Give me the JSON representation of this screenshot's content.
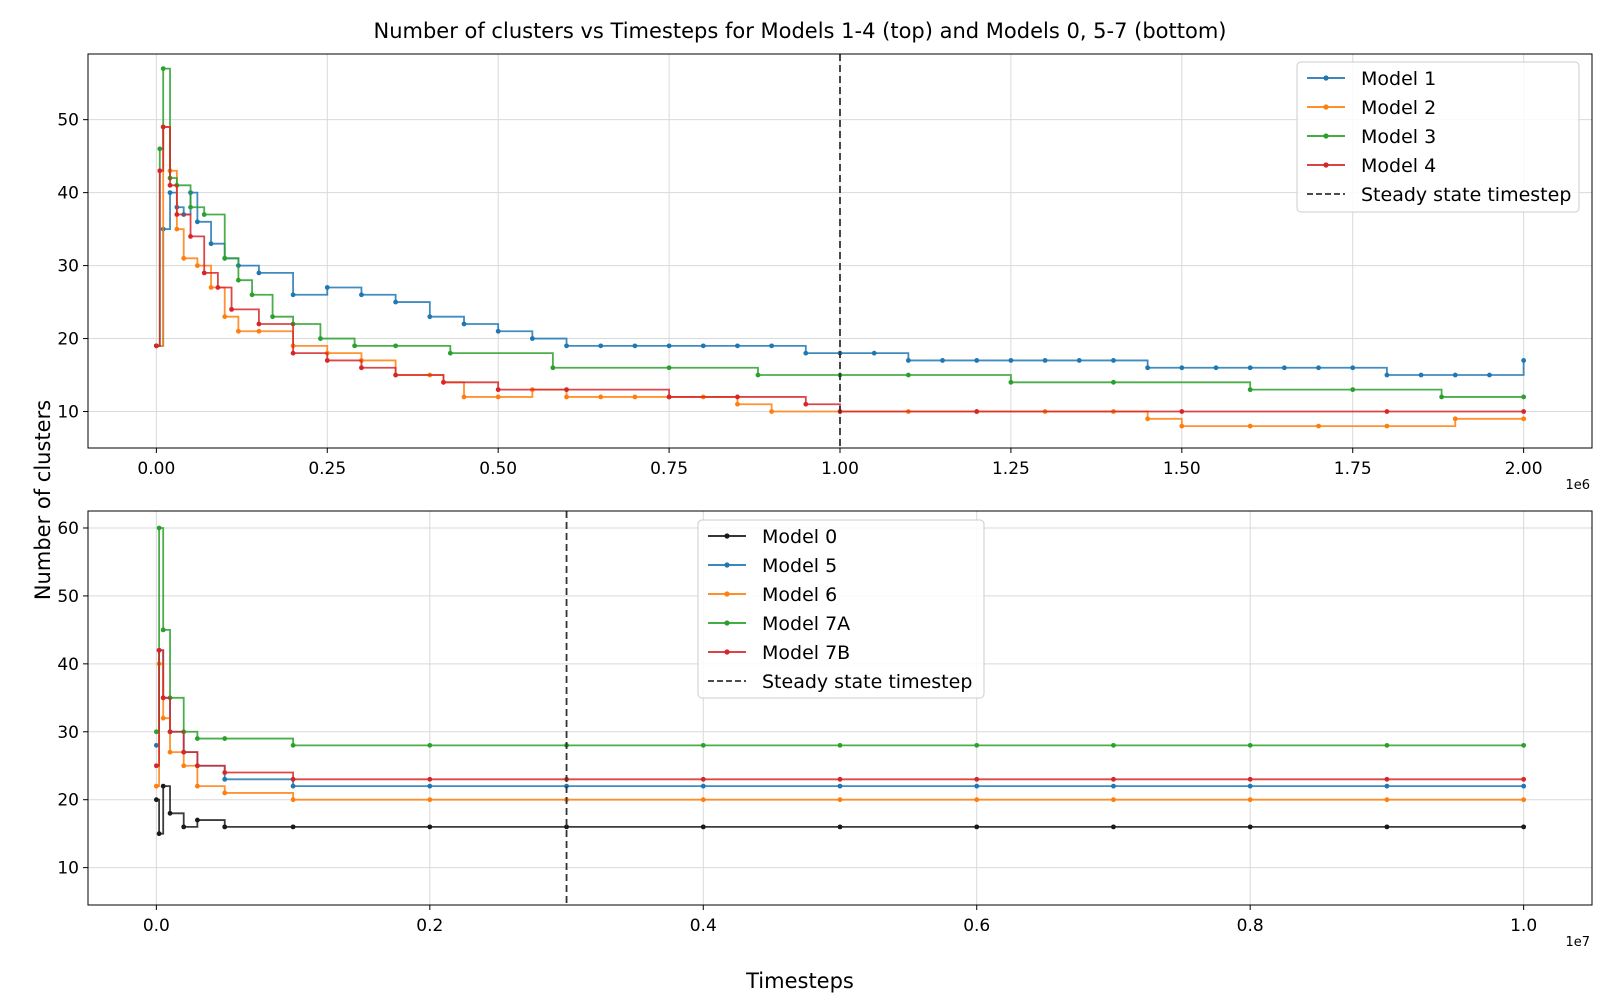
{
  "figure": {
    "title": "Number of clusters vs Timesteps for Models 1-4 (top) and Models 0, 5-7 (bottom)",
    "shared_xlabel": "Timesteps",
    "shared_ylabel": "Number of clusters"
  },
  "chart_data": [
    {
      "type": "line",
      "panel": "top",
      "xlim": [
        -0.1,
        2.1
      ],
      "ylim": [
        5,
        59
      ],
      "x_ticks": [
        0.0,
        0.25,
        0.5,
        0.75,
        1.0,
        1.25,
        1.5,
        1.75,
        2.0
      ],
      "x_tick_labels": [
        "0.00",
        "0.25",
        "0.50",
        "0.75",
        "1.00",
        "1.25",
        "1.50",
        "1.75",
        "2.00"
      ],
      "x_offset_label": "1e6",
      "y_ticks": [
        10,
        20,
        30,
        40,
        50
      ],
      "y_tick_labels": [
        "10",
        "20",
        "30",
        "40",
        "50"
      ],
      "grid": true,
      "legend_position": "top-right",
      "vline": {
        "x": 1.0,
        "label": "Steady state timestep",
        "color": "#333333",
        "style": "dashed"
      },
      "series": [
        {
          "name": "Model 1",
          "color": "#1f77b4",
          "x": [
            0.0,
            0.01,
            0.02,
            0.03,
            0.04,
            0.05,
            0.06,
            0.08,
            0.1,
            0.12,
            0.15,
            0.2,
            0.25,
            0.3,
            0.35,
            0.4,
            0.45,
            0.5,
            0.55,
            0.6,
            0.65,
            0.7,
            0.75,
            0.8,
            0.85,
            0.9,
            0.95,
            1.0,
            1.05,
            1.1,
            1.15,
            1.2,
            1.25,
            1.3,
            1.35,
            1.4,
            1.45,
            1.5,
            1.55,
            1.6,
            1.65,
            1.7,
            1.75,
            1.8,
            1.85,
            1.9,
            1.95,
            2.0
          ],
          "y": [
            19,
            35,
            40,
            38,
            37,
            40,
            36,
            33,
            31,
            30,
            29,
            26,
            27,
            26,
            25,
            23,
            22,
            21,
            20,
            19,
            19,
            19,
            19,
            19,
            19,
            19,
            18,
            18,
            18,
            17,
            17,
            17,
            17,
            17,
            17,
            17,
            16,
            16,
            16,
            16,
            16,
            16,
            16,
            15,
            15,
            15,
            15,
            17
          ]
        },
        {
          "name": "Model 2",
          "color": "#ff7f0e",
          "x": [
            0.0,
            0.01,
            0.02,
            0.03,
            0.04,
            0.06,
            0.08,
            0.1,
            0.12,
            0.15,
            0.2,
            0.25,
            0.3,
            0.35,
            0.4,
            0.42,
            0.45,
            0.5,
            0.55,
            0.6,
            0.65,
            0.7,
            0.75,
            0.8,
            0.85,
            0.9,
            1.0,
            1.1,
            1.2,
            1.3,
            1.4,
            1.45,
            1.5,
            1.6,
            1.7,
            1.8,
            1.9,
            2.0
          ],
          "y": [
            19,
            49,
            43,
            35,
            31,
            30,
            27,
            23,
            21,
            21,
            19,
            18,
            17,
            15,
            15,
            14,
            12,
            12,
            13,
            12,
            12,
            12,
            12,
            12,
            11,
            10,
            10,
            10,
            10,
            10,
            10,
            9,
            8,
            8,
            8,
            8,
            9,
            9
          ]
        },
        {
          "name": "Model 3",
          "color": "#2ca02c",
          "x": [
            0.0,
            0.005,
            0.01,
            0.02,
            0.03,
            0.05,
            0.07,
            0.1,
            0.12,
            0.14,
            0.17,
            0.2,
            0.24,
            0.29,
            0.35,
            0.43,
            0.58,
            0.75,
            0.88,
            1.0,
            1.1,
            1.25,
            1.4,
            1.6,
            1.75,
            1.88,
            2.0
          ],
          "y": [
            19,
            46,
            57,
            42,
            41,
            38,
            37,
            31,
            28,
            26,
            23,
            22,
            20,
            19,
            19,
            18,
            16,
            16,
            15,
            15,
            15,
            14,
            14,
            13,
            13,
            12,
            12
          ]
        },
        {
          "name": "Model 4",
          "color": "#d62728",
          "x": [
            0.0,
            0.005,
            0.01,
            0.02,
            0.03,
            0.05,
            0.07,
            0.09,
            0.11,
            0.15,
            0.2,
            0.25,
            0.3,
            0.35,
            0.42,
            0.5,
            0.6,
            0.75,
            0.85,
            0.95,
            1.0,
            1.2,
            1.5,
            1.8,
            2.0
          ],
          "y": [
            19,
            43,
            49,
            41,
            37,
            34,
            29,
            27,
            24,
            22,
            18,
            17,
            16,
            15,
            14,
            13,
            13,
            12,
            12,
            11,
            10,
            10,
            10,
            10,
            10
          ]
        }
      ]
    },
    {
      "type": "line",
      "panel": "bottom",
      "xlim": [
        -0.05,
        1.05
      ],
      "ylim": [
        4.5,
        62.5
      ],
      "x_ticks": [
        0.0,
        0.2,
        0.4,
        0.6,
        0.8,
        1.0
      ],
      "x_tick_labels": [
        "0.0",
        "0.2",
        "0.4",
        "0.6",
        "0.8",
        "1.0"
      ],
      "x_offset_label": "1e7",
      "y_ticks": [
        10,
        20,
        30,
        40,
        50,
        60
      ],
      "y_tick_labels": [
        "10",
        "20",
        "30",
        "40",
        "50",
        "60"
      ],
      "grid": true,
      "legend_position": "top-center",
      "vline": {
        "x": 0.3,
        "label": "Steady state timestep",
        "color": "#333333",
        "style": "dashed"
      },
      "series": [
        {
          "name": "Model 0",
          "color": "#1a1a1a",
          "x": [
            0.0,
            0.002,
            0.005,
            0.01,
            0.02,
            0.03,
            0.05,
            0.1,
            0.2,
            0.3,
            0.4,
            0.5,
            0.6,
            0.7,
            0.8,
            0.9,
            1.0
          ],
          "y": [
            20,
            15,
            22,
            18,
            16,
            17,
            16,
            16,
            16,
            16,
            16,
            16,
            16,
            16,
            16,
            16,
            16
          ]
        },
        {
          "name": "Model 5",
          "color": "#1f77b4",
          "x": [
            0.0,
            0.002,
            0.005,
            0.01,
            0.02,
            0.03,
            0.05,
            0.1,
            0.2,
            0.3,
            0.4,
            0.5,
            0.6,
            0.7,
            0.8,
            0.9,
            1.0
          ],
          "y": [
            28,
            42,
            35,
            30,
            27,
            25,
            23,
            22,
            22,
            22,
            22,
            22,
            22,
            22,
            22,
            22,
            22
          ]
        },
        {
          "name": "Model 6",
          "color": "#ff7f0e",
          "x": [
            0.0,
            0.002,
            0.005,
            0.01,
            0.02,
            0.03,
            0.05,
            0.1,
            0.2,
            0.3,
            0.4,
            0.5,
            0.6,
            0.7,
            0.8,
            0.9,
            1.0
          ],
          "y": [
            22,
            40,
            32,
            27,
            25,
            22,
            21,
            20,
            20,
            20,
            20,
            20,
            20,
            20,
            20,
            20,
            20
          ]
        },
        {
          "name": "Model 7A",
          "color": "#2ca02c",
          "x": [
            0.0,
            0.002,
            0.005,
            0.01,
            0.02,
            0.03,
            0.05,
            0.1,
            0.2,
            0.3,
            0.4,
            0.5,
            0.6,
            0.7,
            0.8,
            0.9,
            1.0
          ],
          "y": [
            30,
            60,
            45,
            35,
            30,
            29,
            29,
            28,
            28,
            28,
            28,
            28,
            28,
            28,
            28,
            28,
            28
          ]
        },
        {
          "name": "Model 7B",
          "color": "#d62728",
          "x": [
            0.0,
            0.002,
            0.005,
            0.01,
            0.02,
            0.03,
            0.05,
            0.1,
            0.2,
            0.3,
            0.4,
            0.5,
            0.6,
            0.7,
            0.8,
            0.9,
            1.0
          ],
          "y": [
            25,
            42,
            35,
            30,
            27,
            25,
            24,
            23,
            23,
            23,
            23,
            23,
            23,
            23,
            23,
            23,
            23
          ]
        }
      ]
    }
  ]
}
